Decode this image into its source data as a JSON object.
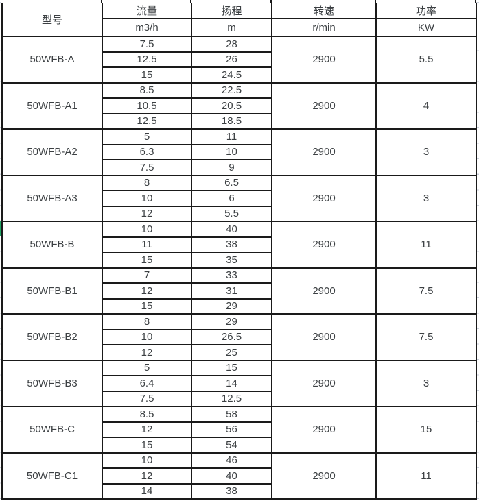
{
  "colors": {
    "table_border": "#1a1a1a",
    "text": "#3c4043",
    "faint_gridline": "#ccd2dc",
    "green_marker": "#1fa463",
    "background": "#ffffff"
  },
  "chart_data": {
    "type": "table",
    "columns": [
      {
        "key": "model",
        "label": "型号",
        "unit": ""
      },
      {
        "key": "flow",
        "label": "流量",
        "unit": "m3/h"
      },
      {
        "key": "head",
        "label": "扬程",
        "unit": "m"
      },
      {
        "key": "speed",
        "label": "转速",
        "unit": "r/min"
      },
      {
        "key": "power",
        "label": "功率",
        "unit": "KW"
      }
    ],
    "groups": [
      {
        "model": "50WFB-A",
        "flow": [
          "7.5",
          "12.5",
          "15"
        ],
        "head": [
          "28",
          "26",
          "24.5"
        ],
        "speed": "2900",
        "power": "5.5"
      },
      {
        "model": "50WFB-A1",
        "flow": [
          "8.5",
          "10.5",
          "12.5"
        ],
        "head": [
          "22.5",
          "20.5",
          "18.5"
        ],
        "speed": "2900",
        "power": "4"
      },
      {
        "model": "50WFB-A2",
        "flow": [
          "5",
          "6.3",
          "7.5"
        ],
        "head": [
          "11",
          "10",
          "9"
        ],
        "speed": "2900",
        "power": "3"
      },
      {
        "model": "50WFB-A3",
        "flow": [
          "8",
          "10",
          "12"
        ],
        "head": [
          "6.5",
          "6",
          "5.5"
        ],
        "speed": "2900",
        "power": "3"
      },
      {
        "model": "50WFB-B",
        "flow": [
          "10",
          "11",
          "15"
        ],
        "head": [
          "40",
          "38",
          "35"
        ],
        "speed": "2900",
        "power": "11"
      },
      {
        "model": "50WFB-B1",
        "flow": [
          "7",
          "12",
          "15"
        ],
        "head": [
          "33",
          "31",
          "29"
        ],
        "speed": "2900",
        "power": "7.5"
      },
      {
        "model": "50WFB-B2",
        "flow": [
          "8",
          "10",
          "12"
        ],
        "head": [
          "29",
          "26.5",
          "25"
        ],
        "speed": "2900",
        "power": "7.5"
      },
      {
        "model": "50WFB-B3",
        "flow": [
          "5",
          "6.4",
          "7.5"
        ],
        "head": [
          "15",
          "14",
          "12.5"
        ],
        "speed": "2900",
        "power": "3"
      },
      {
        "model": "50WFB-C",
        "flow": [
          "8.5",
          "12",
          "15"
        ],
        "head": [
          "58",
          "56",
          "54"
        ],
        "speed": "2900",
        "power": "15"
      },
      {
        "model": "50WFB-C1",
        "flow": [
          "10",
          "12",
          "14"
        ],
        "head": [
          "46",
          "40",
          "38"
        ],
        "speed": "2900",
        "power": "11"
      }
    ]
  }
}
